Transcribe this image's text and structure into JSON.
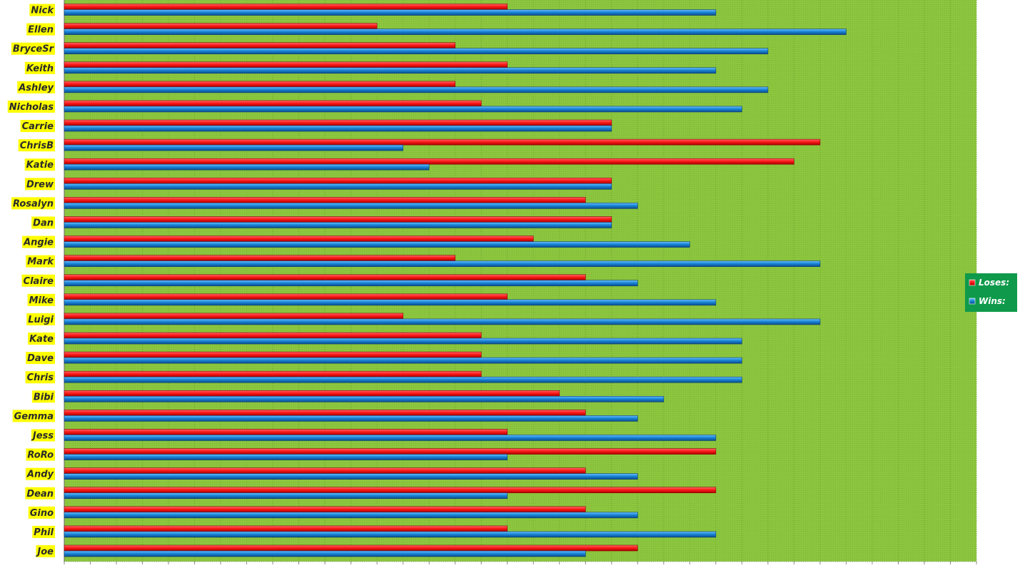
{
  "chart_data": {
    "type": "bar",
    "orientation": "horizontal",
    "categories": [
      "Nick",
      "Ellen",
      "BryceSr",
      "Keith",
      "Ashley",
      "Nicholas",
      "Carrie",
      "ChrisB",
      "Katie",
      "Drew",
      "Rosalyn",
      "Dan",
      "Angie",
      "Mark",
      "Claire",
      "Mike",
      "Luigi",
      "Kate",
      "Dave",
      "Chris",
      "Bibi",
      "Gemma",
      "Jess",
      "RoRo",
      "Andy",
      "Dean",
      "Gino",
      "Phil",
      "Joe"
    ],
    "series": [
      {
        "name": "Loses:",
        "color": "#ff2020",
        "values": [
          17,
          12,
          15,
          17,
          15,
          16,
          21,
          29,
          28,
          21,
          20,
          21,
          18,
          15,
          20,
          17,
          13,
          16,
          16,
          16,
          19,
          20,
          17,
          25,
          20,
          25,
          20,
          17,
          22
        ]
      },
      {
        "name": "Wins:",
        "color": "#1a86d8",
        "values": [
          25,
          30,
          27,
          25,
          27,
          26,
          21,
          13,
          14,
          21,
          22,
          21,
          24,
          29,
          22,
          25,
          29,
          26,
          26,
          26,
          23,
          22,
          25,
          17,
          22,
          17,
          22,
          25,
          20
        ]
      }
    ],
    "xlim": [
      0,
      35
    ],
    "grid": true,
    "legend": "right",
    "plot_color": "#8cc63f",
    "label_highlight": "#ffff00",
    "legend_color": "#0e9a4a"
  }
}
